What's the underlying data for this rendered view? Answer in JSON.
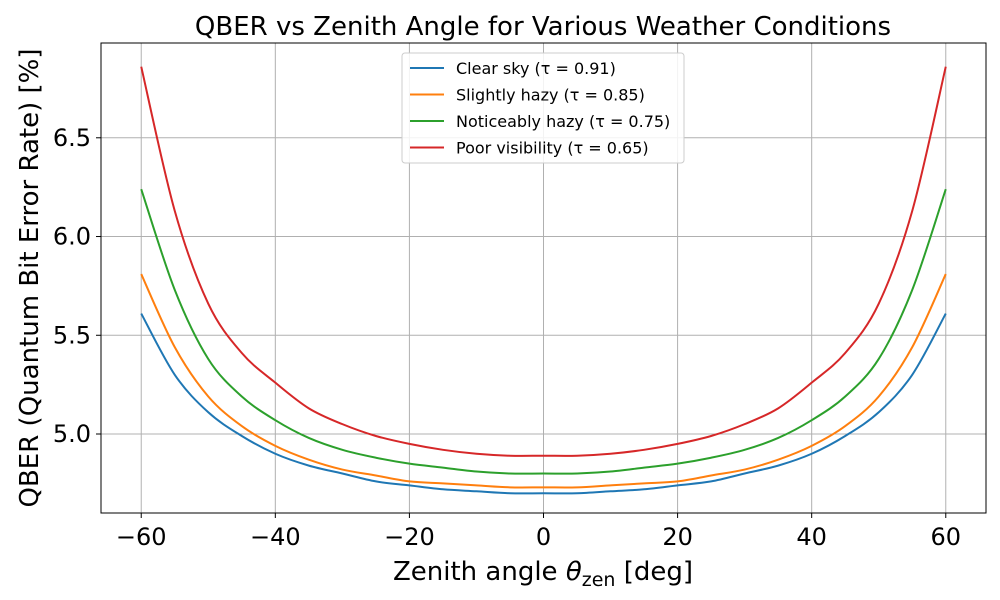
{
  "chart_data": {
    "type": "line",
    "title": "QBER vs Zenith Angle for Various Weather Conditions",
    "xlabel_prefix": "Zenith angle ",
    "xlabel_symbol": "θ",
    "xlabel_subscript": "zen",
    "xlabel_suffix": " [deg]",
    "ylabel": "QBER (Quantum Bit Error Rate) [%]",
    "xlim": [
      -66,
      66
    ],
    "ylim": [
      4.6,
      6.98
    ],
    "xticks": [
      -60,
      -40,
      -20,
      0,
      20,
      40,
      60
    ],
    "xtick_labels": [
      "−60",
      "−40",
      "−20",
      "0",
      "20",
      "40",
      "60"
    ],
    "yticks": [
      5.0,
      5.5,
      6.0,
      6.5
    ],
    "ytick_labels": [
      "5.0",
      "5.5",
      "6.0",
      "6.5"
    ],
    "grid": true,
    "legend_position": "top-center",
    "x": [
      -60,
      -55,
      -50,
      -45,
      -40,
      -35,
      -30,
      -25,
      -20,
      -15,
      -10,
      -5,
      0,
      5,
      10,
      15,
      20,
      25,
      30,
      35,
      40,
      45,
      50,
      55,
      60
    ],
    "series": [
      {
        "name": "Clear sky (τ = 0.91)",
        "color": "#1f77b4",
        "values": [
          5.61,
          5.3,
          5.11,
          4.99,
          4.9,
          4.84,
          4.8,
          4.76,
          4.74,
          4.72,
          4.71,
          4.7,
          4.7,
          4.7,
          4.71,
          4.72,
          4.74,
          4.76,
          4.8,
          4.84,
          4.9,
          4.99,
          5.11,
          5.3,
          5.61
        ]
      },
      {
        "name": "Slightly hazy (τ = 0.85)",
        "color": "#ff7f0e",
        "values": [
          5.81,
          5.44,
          5.19,
          5.04,
          4.94,
          4.87,
          4.82,
          4.79,
          4.76,
          4.75,
          4.74,
          4.73,
          4.73,
          4.73,
          4.74,
          4.75,
          4.76,
          4.79,
          4.82,
          4.87,
          4.94,
          5.04,
          5.19,
          5.44,
          5.81
        ]
      },
      {
        "name": "Noticeably hazy (τ = 0.75)",
        "color": "#2ca02c",
        "values": [
          6.24,
          5.73,
          5.38,
          5.19,
          5.07,
          4.98,
          4.92,
          4.88,
          4.85,
          4.83,
          4.81,
          4.8,
          4.8,
          4.8,
          4.81,
          4.83,
          4.85,
          4.88,
          4.92,
          4.98,
          5.07,
          5.19,
          5.38,
          5.73,
          6.24
        ]
      },
      {
        "name": "Poor visibility (τ = 0.65)",
        "color": "#d62728",
        "values": [
          6.86,
          6.13,
          5.66,
          5.41,
          5.26,
          5.13,
          5.05,
          4.99,
          4.95,
          4.92,
          4.9,
          4.89,
          4.89,
          4.89,
          4.9,
          4.92,
          4.95,
          4.99,
          5.05,
          5.13,
          5.26,
          5.41,
          5.66,
          6.13,
          6.86
        ]
      }
    ]
  }
}
